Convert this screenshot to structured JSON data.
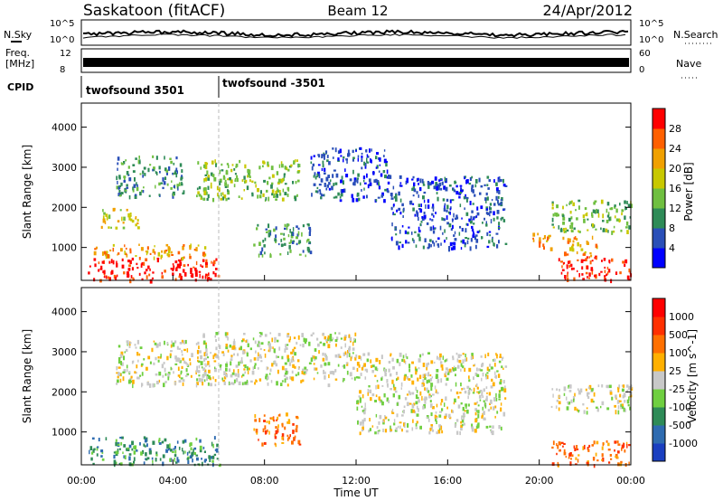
{
  "header": {
    "station": "Saskatoon (fitACF)",
    "beam": "Beam 12",
    "date": "24/Apr/2012"
  },
  "top_panels": {
    "nsky_label": "N.Sky",
    "nsky_ticks": [
      "10^5",
      "10^0"
    ],
    "nsearch_label": "N.Search",
    "nsearch_ticks": [
      "10^5",
      "10^0"
    ],
    "freq_label": "Freq.",
    "freq_unit": "[MHz]",
    "freq_ticks": [
      "12",
      "8"
    ],
    "nave_label": "Nave",
    "nave_ticks": [
      "60",
      "0"
    ],
    "cpid_label": "CPID",
    "cpid_segments": [
      {
        "label": "twofsound 3501",
        "start_hour": 0,
        "end_hour": 6.05
      },
      {
        "label": "twofsound -3501",
        "start_hour": 6.05,
        "end_hour": 24
      }
    ]
  },
  "power_colorbar": {
    "label": "Power [dB]",
    "ticks": [
      "28",
      "24",
      "20",
      "16",
      "12",
      "8",
      "4"
    ],
    "colors": [
      "#0000ff",
      "#2a4fb8",
      "#2e8b57",
      "#6fbf40",
      "#c8c800",
      "#f0a000",
      "#ff6000",
      "#ff0000"
    ]
  },
  "velocity_colorbar": {
    "label": "Velocity [m s^-1]",
    "ticks": [
      "1000",
      "500",
      "100",
      "25",
      "-25",
      "-100",
      "-500",
      "-1000"
    ],
    "colors": [
      "#1a3fc0",
      "#2e6bb0",
      "#2e8b57",
      "#6fcf40",
      "#c8c8c8",
      "#ffb000",
      "#ff7000",
      "#ff3000",
      "#ff0000"
    ]
  },
  "chart_data": [
    {
      "type": "heatmap",
      "title": "Power",
      "ylabel": "Slant Range [km]",
      "yticks": [
        1000,
        2000,
        3000,
        4000
      ],
      "ylim": [
        180,
        4600
      ],
      "xlim": [
        0,
        24
      ],
      "regions": [
        {
          "x0": 0.2,
          "x1": 6.0,
          "y0": 200,
          "y1": 750,
          "level": 7
        },
        {
          "x0": 0.5,
          "x1": 5.5,
          "y0": 750,
          "y1": 1100,
          "level": 5
        },
        {
          "x0": 0.8,
          "x1": 2.5,
          "y0": 1500,
          "y1": 2000,
          "level": 4
        },
        {
          "x0": 1.5,
          "x1": 4.5,
          "y0": 2300,
          "y1": 3300,
          "level": 2
        },
        {
          "x0": 5.0,
          "x1": 9.5,
          "y0": 2200,
          "y1": 3200,
          "level": 3
        },
        {
          "x0": 7.5,
          "x1": 10.0,
          "y0": 800,
          "y1": 1600,
          "level": 2
        },
        {
          "x0": 10.0,
          "x1": 13.5,
          "y0": 2200,
          "y1": 3500,
          "level": 1
        },
        {
          "x0": 13.5,
          "x1": 18.5,
          "y0": 1000,
          "y1": 2800,
          "level": 1
        },
        {
          "x0": 19.5,
          "x1": 20.5,
          "y0": 1000,
          "y1": 1400,
          "level": 5
        },
        {
          "x0": 20.5,
          "x1": 24.0,
          "y0": 1400,
          "y1": 2200,
          "level": 3
        },
        {
          "x0": 20.8,
          "x1": 24.0,
          "y0": 200,
          "y1": 800,
          "level": 7
        },
        {
          "x0": 21.0,
          "x1": 22.5,
          "y0": 800,
          "y1": 1300,
          "level": 5
        }
      ]
    },
    {
      "type": "heatmap",
      "title": "Velocity",
      "ylabel": "Slant Range [km]",
      "xlabel": "Time UT",
      "xticks": [
        "00:00",
        "04:00",
        "08:00",
        "12:00",
        "16:00",
        "20:00",
        "00:00"
      ],
      "yticks": [
        1000,
        2000,
        3000,
        4000
      ],
      "ylim": [
        180,
        4600
      ],
      "xlim": [
        0,
        24
      ],
      "regions": [
        {
          "x0": 0.3,
          "x1": 6.0,
          "y0": 200,
          "y1": 900,
          "level": 2
        },
        {
          "x0": 1.5,
          "x1": 5.5,
          "y0": 2200,
          "y1": 3300,
          "level": 4
        },
        {
          "x0": 5.0,
          "x1": 12.0,
          "y0": 2200,
          "y1": 3500,
          "level": 4
        },
        {
          "x0": 7.5,
          "x1": 9.5,
          "y0": 700,
          "y1": 1500,
          "level": 6
        },
        {
          "x0": 12.0,
          "x1": 18.5,
          "y0": 1000,
          "y1": 3000,
          "level": 4
        },
        {
          "x0": 20.5,
          "x1": 24.0,
          "y0": 200,
          "y1": 800,
          "level": 6
        },
        {
          "x0": 20.5,
          "x1": 24.0,
          "y0": 1500,
          "y1": 2200,
          "level": 4
        }
      ]
    }
  ]
}
